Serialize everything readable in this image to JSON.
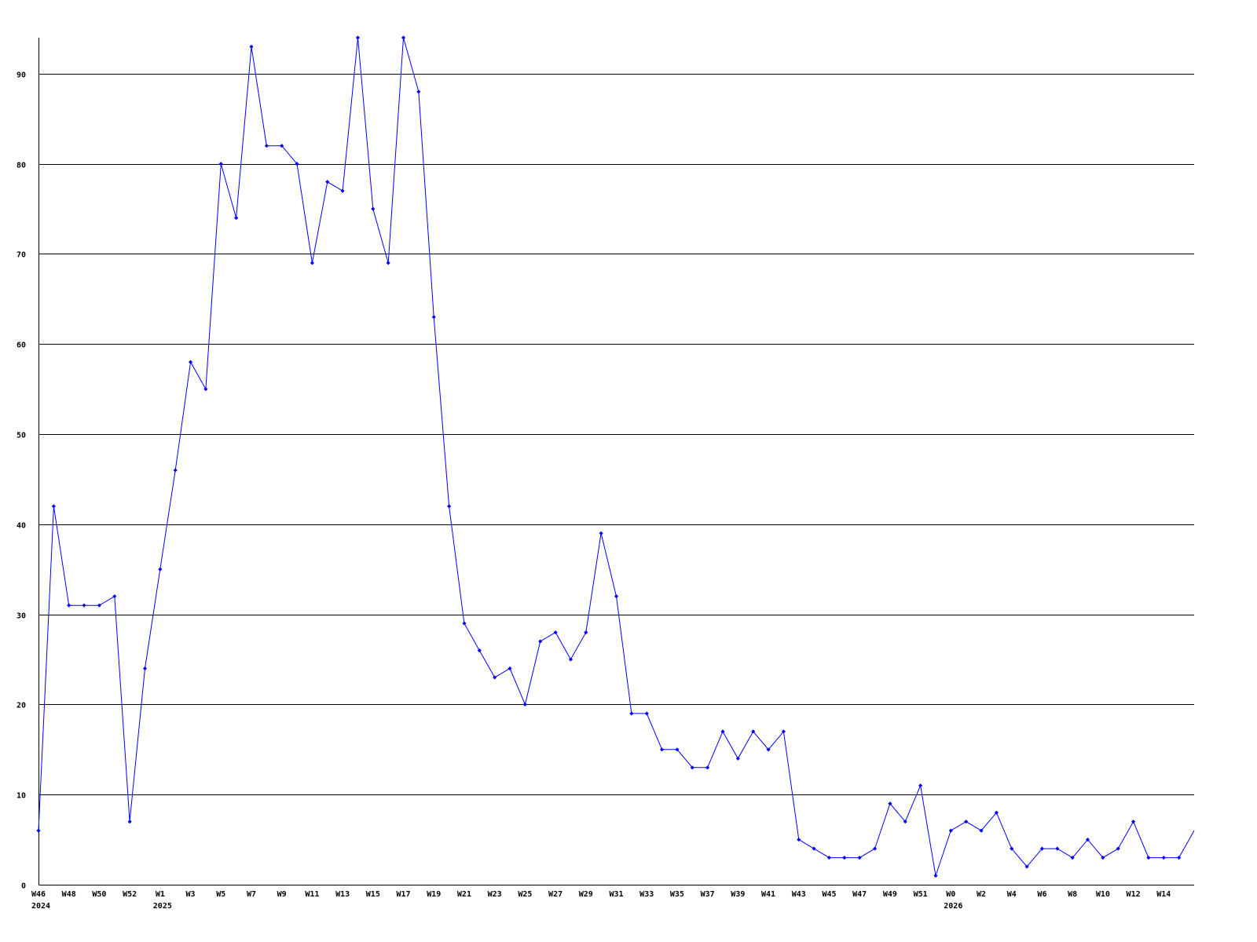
{
  "chart_data": {
    "type": "line",
    "title": "",
    "xlabel": "",
    "ylabel": "",
    "ylim": [
      0,
      94
    ],
    "yticks": [
      0,
      10,
      20,
      30,
      40,
      50,
      60,
      70,
      80,
      90
    ],
    "grid": "horizontal",
    "line_color": "#0000ff",
    "grid_color": "#000000",
    "x": [
      "2024 W46",
      "2024 W47",
      "2024 W48",
      "2024 W49",
      "2024 W50",
      "2024 W51",
      "2024 W52",
      "2025 W0",
      "2025 W1",
      "2025 W2",
      "2025 W3",
      "2025 W4",
      "2025 W5",
      "2025 W6",
      "2025 W7",
      "2025 W8",
      "2025 W9",
      "2025 W10",
      "2025 W11",
      "2025 W12",
      "2025 W13",
      "2025 W14",
      "2025 W15",
      "2025 W16",
      "2025 W17",
      "2025 W18",
      "2025 W19",
      "2025 W20",
      "2025 W21",
      "2025 W22",
      "2025 W23",
      "2025 W24",
      "2025 W25",
      "2025 W26",
      "2025 W27",
      "2025 W28",
      "2025 W29",
      "2025 W30",
      "2025 W31",
      "2025 W32",
      "2025 W33",
      "2025 W34",
      "2025 W35",
      "2025 W36",
      "2025 W37",
      "2025 W38",
      "2025 W39",
      "2025 W40",
      "2025 W41",
      "2025 W42",
      "2025 W43",
      "2025 W44",
      "2025 W45",
      "2025 W46",
      "2025 W47",
      "2025 W48",
      "2025 W49",
      "2025 W50",
      "2025 W51",
      "2025 W52",
      "2026 W0",
      "2026 W1",
      "2026 W2",
      "2026 W3",
      "2026 W4",
      "2026 W5",
      "2026 W6",
      "2026 W7",
      "2026 W8",
      "2026 W9",
      "2026 W10",
      "2026 W11",
      "2026 W12",
      "2026 W13",
      "2026 W14",
      "2026 W15",
      "2026 W16"
    ],
    "values": [
      6,
      42,
      31,
      31,
      31,
      32,
      7,
      24,
      35,
      46,
      58,
      55,
      80,
      74,
      93,
      82,
      82,
      80,
      69,
      78,
      77,
      94,
      75,
      69,
      94,
      88,
      63,
      42,
      29,
      26,
      23,
      24,
      20,
      27,
      28,
      25,
      28,
      39,
      32,
      19,
      19,
      15,
      15,
      13,
      13,
      17,
      14,
      17,
      15,
      17,
      5,
      4,
      3,
      3,
      3,
      4,
      9,
      7,
      11,
      1,
      6,
      7,
      6,
      8,
      4,
      2,
      4,
      4,
      3,
      5,
      3,
      4,
      7,
      3,
      3,
      3,
      6
    ],
    "x_tick_labels": [
      {
        "label": "W46",
        "year": "2024"
      },
      {
        "label": "W48"
      },
      {
        "label": "W50"
      },
      {
        "label": "W52"
      },
      {
        "label": "W1",
        "year": "2025"
      },
      {
        "label": "W3"
      },
      {
        "label": "W5"
      },
      {
        "label": "W7"
      },
      {
        "label": "W9"
      },
      {
        "label": "W11"
      },
      {
        "label": "W13"
      },
      {
        "label": "W15"
      },
      {
        "label": "W17"
      },
      {
        "label": "W19"
      },
      {
        "label": "W21"
      },
      {
        "label": "W23"
      },
      {
        "label": "W25"
      },
      {
        "label": "W27"
      },
      {
        "label": "W29"
      },
      {
        "label": "W31"
      },
      {
        "label": "W33"
      },
      {
        "label": "W35"
      },
      {
        "label": "W37"
      },
      {
        "label": "W39"
      },
      {
        "label": "W41"
      },
      {
        "label": "W43"
      },
      {
        "label": "W45"
      },
      {
        "label": "W47"
      },
      {
        "label": "W49"
      },
      {
        "label": "W51"
      },
      {
        "label": "W0",
        "year": "2026"
      },
      {
        "label": "W2"
      },
      {
        "label": "W4"
      },
      {
        "label": "W6"
      },
      {
        "label": "W8"
      },
      {
        "label": "W10"
      },
      {
        "label": "W12"
      },
      {
        "label": "W14"
      }
    ]
  }
}
